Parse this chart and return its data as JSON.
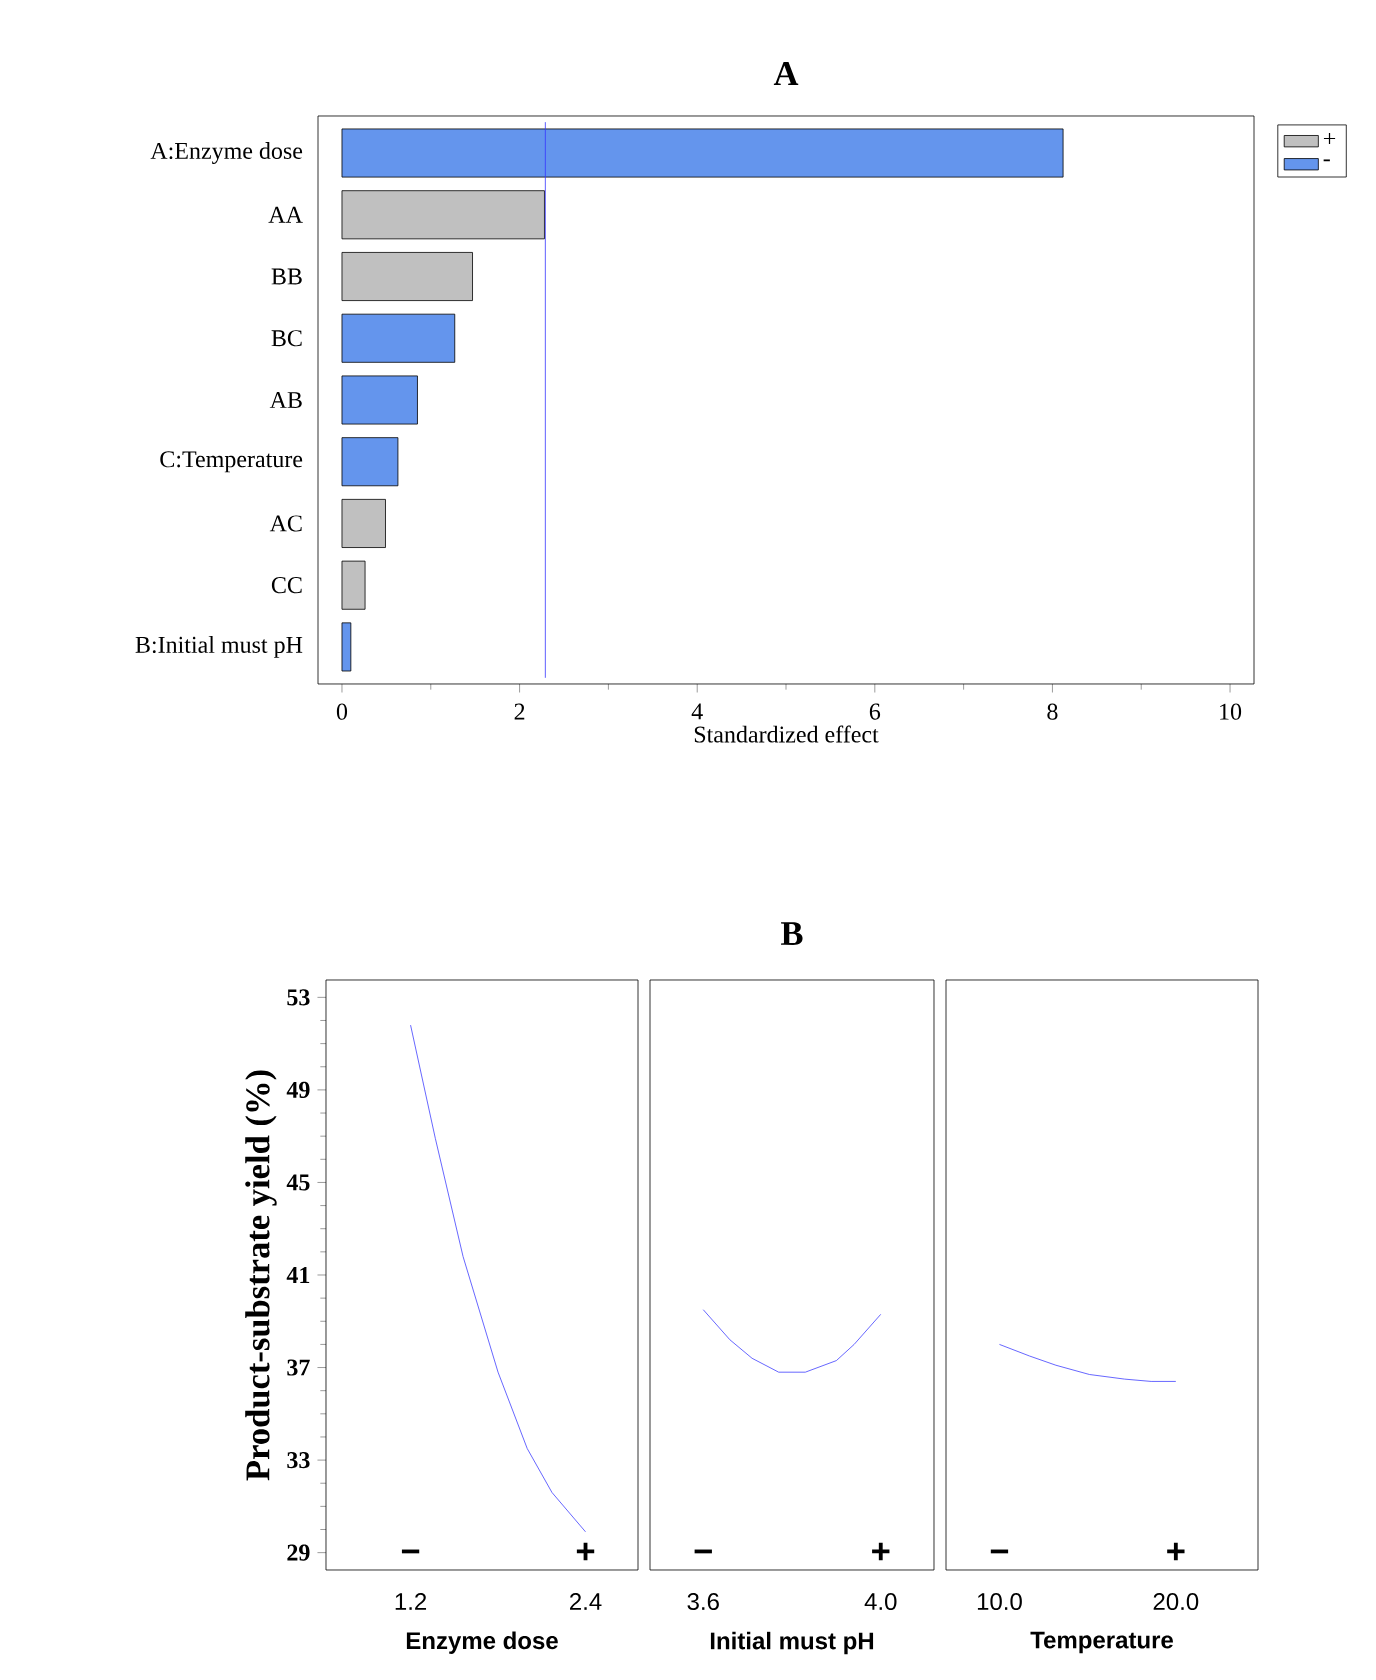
{
  "chart_data": [
    {
      "type": "bar",
      "orientation": "horizontal",
      "title": "A",
      "xlabel": "Standardized effect",
      "categories": [
        "A:Enzyme dose",
        "AA",
        "BB",
        "BC",
        "AB",
        "C:Temperature",
        "AC",
        "CC",
        "B:Initial must pH"
      ],
      "series": [
        {
          "name": "+",
          "color": "#c0c0c0",
          "values": [
            null,
            2.28,
            1.47,
            null,
            null,
            null,
            0.49,
            0.26,
            null
          ]
        },
        {
          "name": "-",
          "color": "#6495ed",
          "values": [
            8.12,
            null,
            null,
            1.27,
            0.85,
            0.63,
            null,
            null,
            0.1
          ]
        }
      ],
      "xlim": [
        -0.27,
        10.27
      ],
      "xticks": [
        0,
        2,
        4,
        6,
        8,
        10
      ],
      "ref_lines": [
        {
          "axis": "x",
          "value": 2.29,
          "color": "#3333ff"
        }
      ],
      "legend": "right",
      "grid": false
    },
    {
      "type": "line",
      "ylabel": "Product-substrate yield (%)",
      "xlabel": "Enzyme dose",
      "series": [
        {
          "color": "#4040ff",
          "x": [
            1.2,
            1.37,
            1.56,
            1.8,
            2.0,
            2.17,
            2.4
          ],
          "values": [
            51.8,
            46.9,
            41.8,
            36.8,
            33.5,
            31.6,
            29.9
          ]
        }
      ],
      "xlim": [
        0.62,
        2.76
      ],
      "xticks": [
        1.2,
        2.4
      ],
      "ylim": [
        28.25,
        53.75
      ],
      "yticks": [
        29,
        33,
        37,
        41,
        45,
        49,
        53
      ],
      "annotations": [
        "−",
        "+"
      ],
      "marker": "none",
      "line_style": "solid",
      "grid": false
    },
    {
      "type": "line",
      "title": "B",
      "xlabel": "Initial must pH",
      "series": [
        {
          "color": "#4040ff",
          "x": [
            3.6,
            3.66,
            3.71,
            3.77,
            3.83,
            3.9,
            3.94,
            4.0
          ],
          "values": [
            39.5,
            38.2,
            37.4,
            36.8,
            36.8,
            37.3,
            38.0,
            39.3
          ]
        }
      ],
      "xlim": [
        3.48,
        4.12
      ],
      "xticks": [
        3.6,
        {
          "value": 4,
          "label": "4.0"
        }
      ],
      "ylim": [
        28.25,
        53.75
      ],
      "tick_labels": "x",
      "annotations": [
        "−",
        "+"
      ],
      "marker": "none",
      "line_style": "solid",
      "grid": false
    },
    {
      "type": "line",
      "xlabel": "Temperature",
      "series": [
        {
          "color": "#4040ff",
          "x": [
            10,
            11.7,
            13.2,
            15.1,
            17.1,
            18.6,
            20
          ],
          "values": [
            38.0,
            37.5,
            37.1,
            36.7,
            36.5,
            36.4,
            36.4
          ]
        }
      ],
      "xlim": [
        6.97,
        24.66
      ],
      "xticks": [
        {
          "value": 10,
          "label": "10.0"
        },
        {
          "value": 20,
          "label": "20.0"
        }
      ],
      "ylim": [
        28.25,
        53.75
      ],
      "tick_labels": "x",
      "annotations": [
        "−",
        "+"
      ],
      "marker": "none",
      "line_style": "solid",
      "grid": false
    }
  ]
}
